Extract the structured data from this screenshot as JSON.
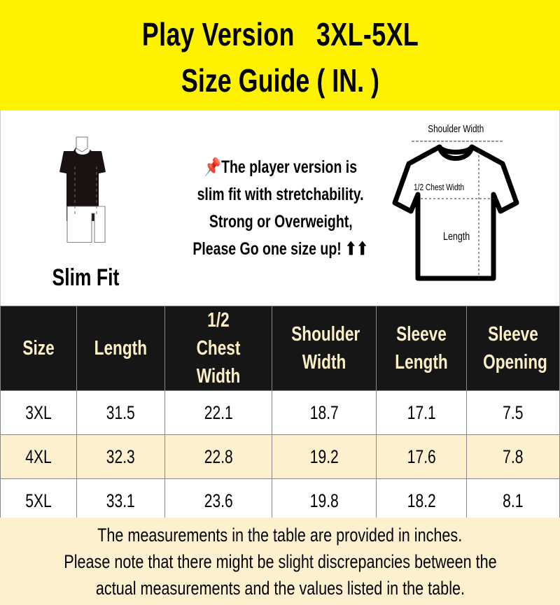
{
  "header": {
    "line1": "Play Version   3XL-5XL",
    "line2": "Size Guide ( IN. )",
    "bg_color": "#fff200"
  },
  "fit": {
    "label": "Slim Fit",
    "icon": "mannequin-icon"
  },
  "note": {
    "icon": "pushpin-icon",
    "lines": [
      "📌The player version is",
      "slim fit with stretchability.",
      "Strong or Overweight,",
      "Please Go one size up! ⬆⬆"
    ]
  },
  "diagram": {
    "shoulder": "Shoulder Width",
    "chest": "1/2 Chest Width",
    "length": "Length",
    "icon": "tshirt-icon"
  },
  "table": {
    "headers": [
      "Size",
      "Length",
      "1/2 Chest Width",
      "Shoulder Width",
      "Sleeve Length",
      "Sleeve Opening"
    ],
    "rows": [
      [
        "3XL",
        "31.5",
        "22.1",
        "18.7",
        "17.1",
        "7.5"
      ],
      [
        "4XL",
        "32.3",
        "22.8",
        "19.2",
        "17.6",
        "7.8"
      ],
      [
        "5XL",
        "33.1",
        "23.6",
        "19.8",
        "18.2",
        "8.1"
      ]
    ],
    "header_bg": "#161616",
    "header_text": "#fdf0c8",
    "alt_row_bg": "#fdf0cf"
  },
  "footer": {
    "lines": [
      "The measurements in the table are provided in inches.",
      "Please note that there might be slight discrepancies between the",
      "actual measurements and the values listed in the table."
    ]
  }
}
